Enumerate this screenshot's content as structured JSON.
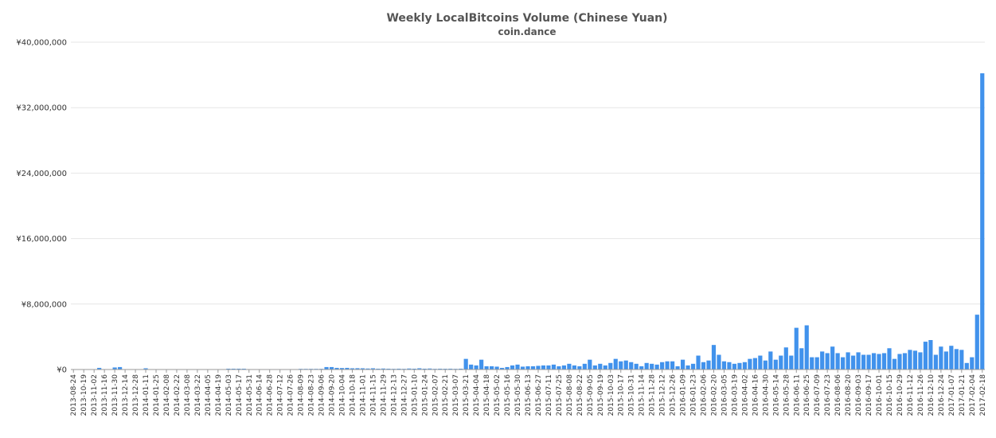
{
  "chart_data": {
    "type": "bar",
    "title": "Weekly LocalBitcoins Volume (Chinese Yuan)",
    "subtitle": "coin.dance",
    "color": "#4192ec",
    "grid": true,
    "ylim": [
      0,
      40000000
    ],
    "yticks": [
      {
        "value": 0,
        "label": "¥0"
      },
      {
        "value": 8000000,
        "label": "¥8,000,000"
      },
      {
        "value": 16000000,
        "label": "¥16,000,000"
      },
      {
        "value": 24000000,
        "label": "¥24,000,000"
      },
      {
        "value": 32000000,
        "label": "¥32,000,000"
      },
      {
        "value": 40000000,
        "label": "¥40,000,000"
      }
    ],
    "categories": [
      "2013-08-24",
      null,
      "2013-10-19",
      null,
      "2013-11-02",
      null,
      "2013-11-16",
      null,
      "2013-11-30",
      null,
      "2013-12-14",
      null,
      "2013-12-28",
      null,
      "2014-01-11",
      null,
      "2014-01-25",
      null,
      "2014-02-08",
      null,
      "2014-02-22",
      null,
      "2014-03-08",
      null,
      "2014-03-22",
      null,
      "2014-04-05",
      null,
      "2014-04-19",
      null,
      "2014-05-03",
      null,
      "2014-05-17",
      null,
      "2014-05-31",
      null,
      "2014-06-14",
      null,
      "2014-06-28",
      null,
      "2014-07-12",
      null,
      "2014-07-26",
      null,
      "2014-08-09",
      null,
      "2014-08-23",
      null,
      "2014-09-06",
      null,
      "2014-09-20",
      null,
      "2014-10-04",
      null,
      "2014-10-18",
      null,
      "2014-11-01",
      null,
      "2014-11-15",
      null,
      "2014-11-29",
      null,
      "2014-12-13",
      null,
      "2014-12-27",
      null,
      "2015-01-10",
      null,
      "2015-01-24",
      null,
      "2015-02-07",
      null,
      "2015-02-21",
      null,
      "2015-03-07",
      null,
      "2015-03-21",
      null,
      "2015-04-04",
      null,
      "2015-04-18",
      null,
      "2015-05-02",
      null,
      "2015-05-16",
      null,
      "2015-05-30",
      null,
      "2015-06-13",
      null,
      "2015-06-27",
      null,
      "2015-07-11",
      null,
      "2015-07-25",
      null,
      "2015-08-08",
      null,
      "2015-08-22",
      null,
      "2015-09-05",
      null,
      "2015-09-19",
      null,
      "2015-10-03",
      null,
      "2015-10-17",
      null,
      "2015-10-31",
      null,
      "2015-11-14",
      null,
      "2015-11-28",
      null,
      "2015-12-12",
      null,
      "2015-12-26",
      null,
      "2016-01-09",
      null,
      "2016-01-23",
      null,
      "2016-02-06",
      null,
      "2016-02-20",
      null,
      "2016-03-05",
      null,
      "2016-03-19",
      null,
      "2016-04-02",
      null,
      "2016-04-16",
      null,
      "2016-04-30",
      null,
      "2016-05-14",
      null,
      "2016-05-28",
      null,
      "2016-06-11",
      null,
      "2016-06-25",
      null,
      "2016-07-09",
      null,
      "2016-07-23",
      null,
      "2016-08-06",
      null,
      "2016-08-20",
      null,
      "2016-09-03",
      null,
      "2016-09-17",
      null,
      "2016-10-01",
      null,
      "2016-10-15",
      null,
      "2016-10-29",
      null,
      "2016-11-12",
      null,
      "2016-11-26",
      null,
      "2016-12-10",
      null,
      "2016-12-24",
      null,
      "2017-01-07",
      null,
      "2017-01-21",
      null,
      "2017-02-04",
      null,
      "2017-02-18"
    ],
    "values": [
      0,
      0,
      30000,
      20000,
      10000,
      200000,
      50000,
      30000,
      250000,
      300000,
      40000,
      30000,
      20000,
      30000,
      150000,
      30000,
      20000,
      20000,
      20000,
      20000,
      30000,
      20000,
      20000,
      20000,
      20000,
      30000,
      20000,
      20000,
      20000,
      20000,
      100000,
      100000,
      100000,
      100000,
      50000,
      50000,
      50000,
      50000,
      50000,
      50000,
      50000,
      50000,
      50000,
      50000,
      80000,
      80000,
      80000,
      80000,
      80000,
      300000,
      300000,
      200000,
      180000,
      200000,
      150000,
      160000,
      150000,
      120000,
      150000,
      100000,
      120000,
      100000,
      80000,
      100000,
      80000,
      120000,
      100000,
      150000,
      100000,
      120000,
      80000,
      100000,
      90000,
      100000,
      80000,
      100000,
      1300000,
      600000,
      500000,
      1200000,
      400000,
      400000,
      350000,
      200000,
      300000,
      500000,
      600000,
      350000,
      400000,
      400000,
      450000,
      500000,
      500000,
      600000,
      400000,
      500000,
      700000,
      500000,
      400000,
      700000,
      1200000,
      500000,
      700000,
      500000,
      800000,
      1300000,
      1000000,
      1100000,
      900000,
      700000,
      400000,
      800000,
      700000,
      600000,
      900000,
      1000000,
      1000000,
      400000,
      1200000,
      500000,
      700000,
      1700000,
      900000,
      1100000,
      3000000,
      1800000,
      1000000,
      900000,
      700000,
      800000,
      900000,
      1300000,
      1400000,
      1700000,
      1100000,
      2200000,
      1200000,
      1700000,
      2700000,
      1700000,
      5100000,
      2600000,
      5400000,
      1500000,
      1500000,
      2200000,
      2000000,
      2800000,
      2000000,
      1500000,
      2100000,
      1700000,
      2100000,
      1800000,
      1800000,
      2000000,
      1900000,
      2000000,
      2600000,
      1300000,
      1900000,
      2000000,
      2400000,
      2300000,
      2100000,
      3400000,
      3600000,
      1800000,
      2800000,
      2200000,
      2900000,
      2500000,
      2400000,
      800000,
      1500000,
      6700000,
      36200000
    ]
  }
}
